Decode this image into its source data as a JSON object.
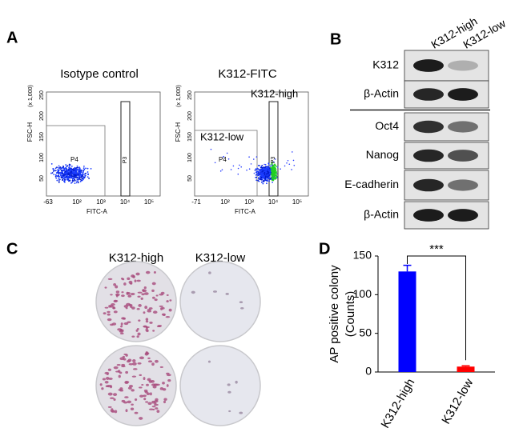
{
  "panel_labels": {
    "a": "A",
    "b": "B",
    "c": "C",
    "d": "D"
  },
  "flow": {
    "plots": [
      {
        "title": "Isotype control",
        "y_axis": "FSC-H",
        "y_scale": "(x 1,000)",
        "x_axis": "FITC-A",
        "yticks": [
          "250",
          "200",
          "150",
          "100",
          "50"
        ],
        "xticks": [
          "-63",
          "10²",
          "10³",
          "10⁴",
          "10⁵"
        ],
        "gates": [
          "P4",
          "P3"
        ]
      },
      {
        "title": "K312-FITC",
        "y_axis": "FSC-H",
        "y_scale": "(x 1,000)",
        "x_axis": "FITC-A",
        "yticks": [
          "250",
          "200",
          "150",
          "100",
          "50"
        ],
        "xticks": [
          "-71",
          "10²",
          "10³",
          "10⁴",
          "10⁵"
        ],
        "gates": [
          "P4",
          "P3"
        ],
        "gate_names": [
          "K312-low",
          "K312-high"
        ]
      }
    ]
  },
  "western": {
    "columns": [
      "K312-high",
      "K312-low"
    ],
    "rows": [
      "K312",
      "β-Actin",
      "Oct4",
      "Nanog",
      "E-cadherin",
      "β-Actin"
    ]
  },
  "colony": {
    "columns": [
      "K312-high",
      "K312-low"
    ]
  },
  "chart_data": {
    "type": "bar",
    "y_label": [
      "AP positive colony",
      "(Counts)"
    ],
    "categories": [
      "K312-high",
      "K312-low"
    ],
    "values": [
      130,
      7
    ],
    "errors": [
      8,
      1
    ],
    "colors": [
      "#0000ff",
      "#ff0000"
    ],
    "ylim": [
      0,
      150
    ],
    "yticks": [
      0,
      50,
      100,
      150
    ],
    "significance": "***"
  }
}
